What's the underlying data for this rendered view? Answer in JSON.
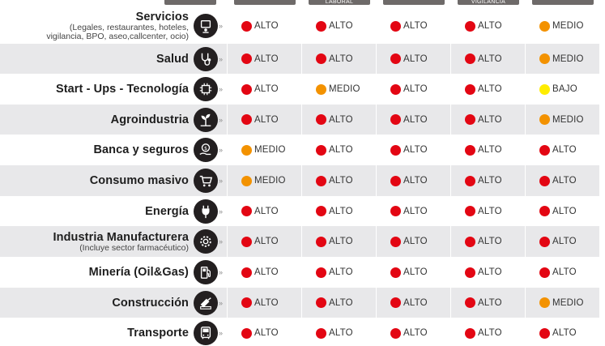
{
  "colors": {
    "ALTO": "#e30613",
    "MEDIO": "#f39200",
    "BAJO": "#ffed00"
  },
  "columns": [
    {
      "label": ""
    },
    {
      "label": "LABORAL"
    },
    {
      "label": ""
    },
    {
      "label": "VIGILANCIA"
    },
    {
      "label": ""
    }
  ],
  "rows": [
    {
      "name": "Servicios",
      "sub": "(Legales, restaurantes, hoteles, vigilancia, BPO, aseo,callcenter, ocio)",
      "icon": "services-icon",
      "levels": [
        "ALTO",
        "ALTO",
        "ALTO",
        "ALTO",
        "MEDIO"
      ]
    },
    {
      "name": "Salud",
      "sub": "",
      "icon": "stethoscope-icon",
      "levels": [
        "ALTO",
        "ALTO",
        "ALTO",
        "ALTO",
        "MEDIO"
      ]
    },
    {
      "name": "Start - Ups - Tecnología",
      "sub": "",
      "icon": "chip-icon",
      "levels": [
        "ALTO",
        "MEDIO",
        "ALTO",
        "ALTO",
        "BAJO"
      ]
    },
    {
      "name": "Agroindustria",
      "sub": "",
      "icon": "plant-icon",
      "levels": [
        "ALTO",
        "ALTO",
        "ALTO",
        "ALTO",
        "MEDIO"
      ]
    },
    {
      "name": "Banca y seguros",
      "sub": "",
      "icon": "money-hand-icon",
      "levels": [
        "MEDIO",
        "ALTO",
        "ALTO",
        "ALTO",
        "ALTO"
      ]
    },
    {
      "name": "Consumo masivo",
      "sub": "",
      "icon": "cart-icon",
      "levels": [
        "MEDIO",
        "ALTO",
        "ALTO",
        "ALTO",
        "ALTO"
      ]
    },
    {
      "name": "Energía",
      "sub": "",
      "icon": "plug-icon",
      "levels": [
        "ALTO",
        "ALTO",
        "ALTO",
        "ALTO",
        "ALTO"
      ]
    },
    {
      "name": "Industria Manufacturera",
      "sub": "(Incluye sector farmacéutico)",
      "icon": "gear-icon",
      "levels": [
        "ALTO",
        "ALTO",
        "ALTO",
        "ALTO",
        "ALTO"
      ]
    },
    {
      "name": "Minería (Oil&Gas)",
      "sub": "",
      "icon": "fuel-icon",
      "levels": [
        "ALTO",
        "ALTO",
        "ALTO",
        "ALTO",
        "ALTO"
      ]
    },
    {
      "name": "Construcción",
      "sub": "",
      "icon": "trowel-brick-icon",
      "levels": [
        "ALTO",
        "ALTO",
        "ALTO",
        "ALTO",
        "MEDIO"
      ]
    },
    {
      "name": "Transporte",
      "sub": "",
      "icon": "bus-icon",
      "levels": [
        "ALTO",
        "ALTO",
        "ALTO",
        "ALTO",
        "ALTO"
      ]
    }
  ]
}
